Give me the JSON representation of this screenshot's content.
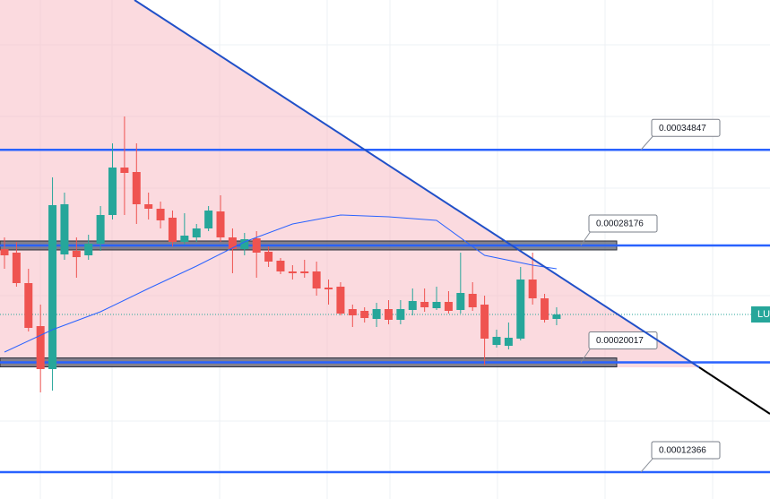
{
  "chart_data": {
    "type": "candlestick",
    "ylim": [
      0.000104875,
      0.000453
    ],
    "up_color": "#26a69a",
    "down_color": "#ef5350",
    "open": [
      0.00027925,
      0.00027675,
      0.0002555,
      0.0002255,
      0.0001955,
      0.0002755,
      0.000278,
      0.000274875,
      0.000283,
      0.000303,
      0.000336125,
      0.000333,
      0.0003105,
      0.000307375,
      0.000301125,
      0.00028425,
      0.000287375,
      0.000293625,
      0.0003055,
      0.000287375,
      0.00027925,
      0.00028675,
      0.000277375,
      0.000271125,
      0.000263625,
      0.000263625,
      0.000263625,
      0.000252375,
      0.000253,
      0.000237375,
      0.000236125,
      0.0002305,
      0.000237375,
      0.000229875,
      0.00023675,
      0.000242375,
      0.000238,
      0.000242375,
      0.00023675,
      0.000248,
      0.0002405,
      0.000212375,
      0.00021175,
      0.00021675,
      0.000258,
      0.000244875,
      0.0002305
    ],
    "high": [
      0.000287375,
      0.00028425,
      0.0002655,
      0.0002405,
      0.00032925,
      0.000318625,
      0.000287375,
      0.00028925,
      0.00030925,
      0.000353,
      0.00037175,
      0.000353,
      0.000318625,
      0.000312375,
      0.000306125,
      0.00030425,
      0.00029675,
      0.00030925,
      0.00031675,
      0.000293625,
      0.0002905,
      0.00029175,
      0.000281125,
      0.000273,
      0.000268,
      0.00027175,
      0.0002705,
      0.000258,
      0.000256125,
      0.0002405,
      0.000238625,
      0.00024175,
      0.000243625,
      0.000243625,
      0.00025175,
      0.00025175,
      0.000253,
      0.000249875,
      0.00027675,
      0.000256125,
      0.00024675,
      0.000223,
      0.000228,
      0.00026675,
      0.00027675,
      0.000248,
      0.000238625
    ],
    "low": [
      0.0002655,
      0.000253,
      0.00022175,
      0.00017925,
      0.0001805,
      0.00027175,
      0.00025925,
      0.00027175,
      0.000278,
      0.000299875,
      0.000303,
      0.00029675,
      0.000299875,
      0.000293625,
      0.000281125,
      0.000282375,
      0.00028425,
      0.00029175,
      0.00028425,
      0.000262375,
      0.000274875,
      0.00025925,
      0.00026675,
      0.00026175,
      0.000258,
      0.00025925,
      0.00024675,
      0.0002405,
      0.000233,
      0.000224875,
      0.000228,
      0.000224875,
      0.00022675,
      0.00022675,
      0.000233,
      0.0002355,
      0.00023675,
      0.00023425,
      0.00023425,
      0.000236125,
      0.000198,
      0.0002105,
      0.00020925,
      0.0002155,
      0.0002405,
      0.000228,
      0.000226125
    ],
    "close": [
      0.000274875,
      0.0002555,
      0.00022425,
      0.0001955,
      0.000309875,
      0.0003105,
      0.000273625,
      0.000283,
      0.000303,
      0.000336125,
      0.000332375,
      0.0003105,
      0.000307375,
      0.00029925,
      0.00028425,
      0.000288625,
      0.000293625,
      0.000306125,
      0.000287375,
      0.00027925,
      0.000286125,
      0.00027675,
      0.0002705,
      0.000263625,
      0.000262375,
      0.000262375,
      0.00025175,
      0.000251125,
      0.00023425,
      0.000233,
      0.000231125,
      0.000237375,
      0.000229875,
      0.000237375,
      0.000243,
      0.000238625,
      0.000242375,
      0.000236125,
      0.000248625,
      0.000238625,
      0.00021675,
      0.000218,
      0.000217375,
      0.000258,
      0.000244875,
      0.000229875,
      0.000233625
    ],
    "ma": {
      "color": "#2962ff",
      "x": [
        0,
        4,
        8,
        12,
        16,
        20,
        24,
        28,
        32,
        36,
        40,
        44,
        46
      ],
      "values": [
        0.000207375,
        0.000223,
        0.0002355,
        0.00025175,
        0.000267375,
        0.00028425,
        0.00029675,
        0.000303,
        0.00030175,
        0.00029925,
        0.000274875,
        0.000268,
        0.0002655
      ]
    },
    "levels": [
      0.00034847,
      0.00028176,
      0.00020017,
      0.00012366
    ],
    "level_color": "#2962ff",
    "price_tag": "LU"
  }
}
